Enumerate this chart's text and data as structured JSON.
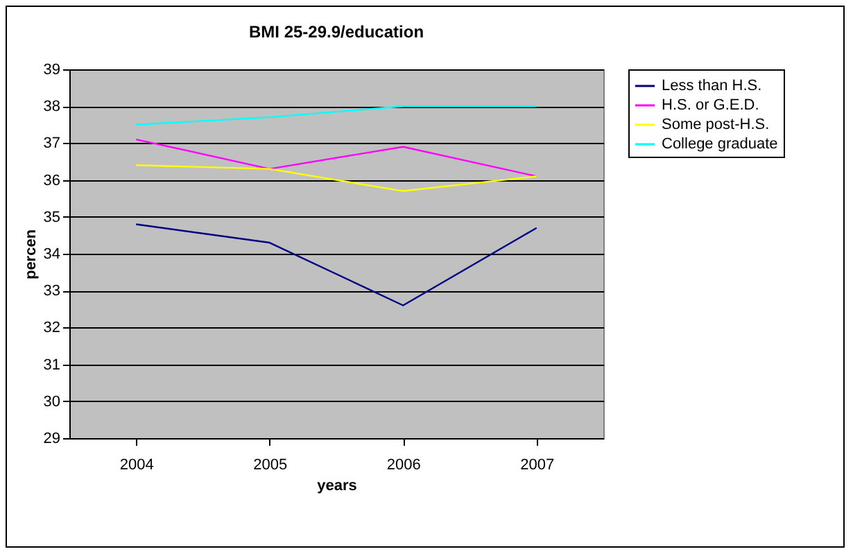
{
  "chart_data": {
    "type": "line",
    "title": "BMI 25-29.9/education",
    "xlabel": "years",
    "ylabel": "percen",
    "categories": [
      "2004",
      "2005",
      "2006",
      "2007"
    ],
    "series": [
      {
        "name": "Less than H.S.",
        "color": "#000080",
        "values": [
          34.8,
          34.3,
          32.6,
          34.7
        ]
      },
      {
        "name": "H.S. or G.E.D.",
        "color": "#ff00ff",
        "values": [
          37.1,
          36.3,
          36.9,
          36.1
        ]
      },
      {
        "name": "Some post-H.S.",
        "color": "#ffff00",
        "values": [
          36.4,
          36.3,
          35.7,
          36.1
        ]
      },
      {
        "name": "College graduate",
        "color": "#00ffff",
        "values": [
          37.5,
          37.7,
          38.0,
          38.0
        ]
      }
    ],
    "ylim": [
      29,
      39
    ],
    "yticks": [
      29,
      30,
      31,
      32,
      33,
      34,
      35,
      36,
      37,
      38,
      39
    ],
    "grid": "y",
    "legend": "right",
    "marker": "none",
    "line_style": "solid"
  }
}
